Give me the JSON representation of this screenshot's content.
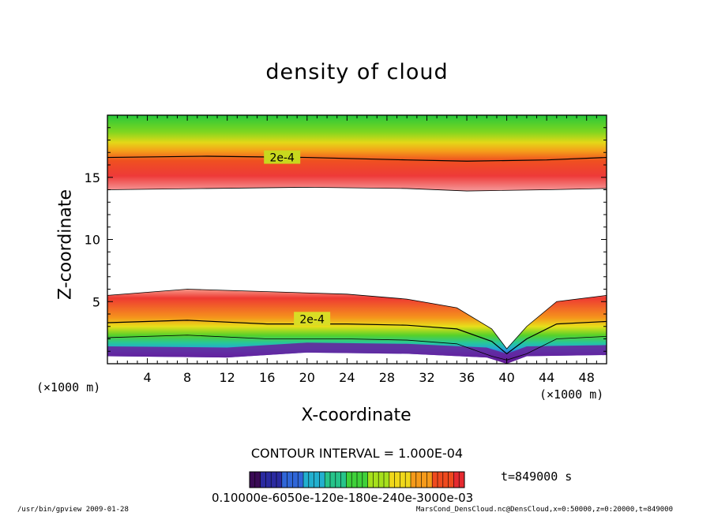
{
  "chart_data": {
    "type": "heatmap",
    "title": "density of cloud",
    "xlabel": "X-coordinate",
    "ylabel": "Z-coordinate",
    "x_unit": "(×1000 m)",
    "x_unit_right": "(×1000 m)",
    "xlim": [
      0,
      50
    ],
    "ylim": [
      0,
      20
    ],
    "x_ticks": [
      4,
      8,
      12,
      16,
      20,
      24,
      28,
      32,
      36,
      40,
      44,
      48
    ],
    "y_ticks": [
      5,
      10,
      15
    ],
    "contour_labels": [
      {
        "text": "2e-4",
        "x": 17.5,
        "z": 16.6
      },
      {
        "text": "2e-4",
        "x": 20.5,
        "z": 3.6
      }
    ],
    "upper_layer": {
      "top_z": 20,
      "contour_2e4_z": [
        [
          0,
          16.6
        ],
        [
          10,
          16.7
        ],
        [
          20,
          16.6
        ],
        [
          30,
          16.4
        ],
        [
          36,
          16.3
        ],
        [
          44,
          16.4
        ],
        [
          50,
          16.6
        ]
      ],
      "bottom_z": [
        [
          0,
          14.0
        ],
        [
          10,
          14.1
        ],
        [
          20,
          14.2
        ],
        [
          30,
          14.1
        ],
        [
          36,
          13.9
        ],
        [
          44,
          14.0
        ],
        [
          50,
          14.1
        ]
      ]
    },
    "lower_layer": {
      "top_z": [
        [
          0,
          5.5
        ],
        [
          8,
          6.0
        ],
        [
          16,
          5.8
        ],
        [
          24,
          5.6
        ],
        [
          30,
          5.2
        ],
        [
          35,
          4.5
        ],
        [
          38.5,
          2.8
        ],
        [
          40,
          1.2
        ],
        [
          42,
          3.0
        ],
        [
          45,
          5.0
        ],
        [
          50,
          5.5
        ]
      ],
      "contour_2e4_z": [
        [
          0,
          3.3
        ],
        [
          8,
          3.5
        ],
        [
          16,
          3.2
        ],
        [
          24,
          3.2
        ],
        [
          30,
          3.1
        ],
        [
          35,
          2.8
        ],
        [
          38.5,
          1.8
        ],
        [
          40,
          0.8
        ],
        [
          42,
          2.0
        ],
        [
          45,
          3.2
        ],
        [
          50,
          3.4
        ]
      ],
      "base_z": [
        [
          0,
          0.6
        ],
        [
          12,
          0.5
        ],
        [
          20,
          0.9
        ],
        [
          30,
          0.8
        ],
        [
          38,
          0.5
        ],
        [
          40,
          0.0
        ],
        [
          42,
          0.6
        ],
        [
          50,
          0.7
        ]
      ]
    },
    "colorbar": {
      "labels_text": "0.10000e-6050e-120e-180e-240e-3000e-03",
      "colors": [
        "#3a0a55",
        "#2a2aa0",
        "#2f66d8",
        "#22b0cf",
        "#26c48a",
        "#3fd13a",
        "#a6e01c",
        "#f0d81a",
        "#f59a1a",
        "#ef4a1e",
        "#e52a30"
      ]
    },
    "contour_interval": "CONTOUR INTERVAL = 1.000E-04",
    "time": "t=849000 s",
    "grid": false,
    "legend_position": "bottom"
  },
  "footer": {
    "left": "/usr/bin/gpview   2009-01-28",
    "right": "MarsCond_DensCloud.nc@DensCloud,x=0:50000,z=0:20000,t=849000"
  }
}
